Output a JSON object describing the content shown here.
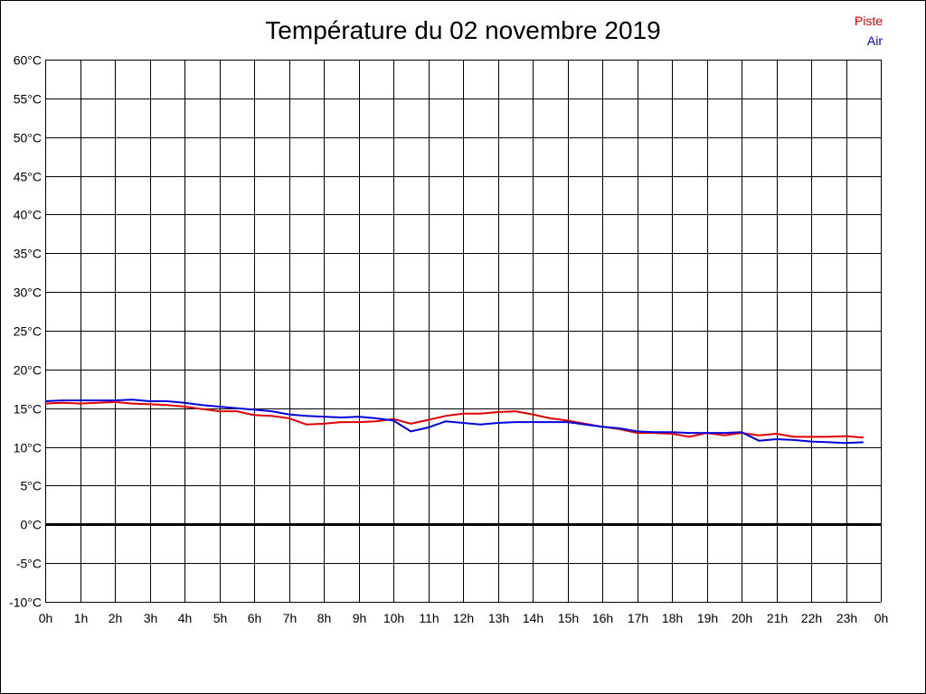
{
  "colors": {
    "piste": "#e00000",
    "air": "#0000dd",
    "grid": "#000000",
    "zero_line": "#000000",
    "background": "#ffffff"
  },
  "chart_data": {
    "type": "line",
    "title": "Température du 02 novembre 2019",
    "xlabel": "",
    "ylabel": "",
    "ylim": [
      -10,
      60
    ],
    "xlim": [
      0,
      24
    ],
    "grid": true,
    "legend_position": "top-right",
    "y_ticks": [
      60,
      55,
      50,
      45,
      40,
      35,
      30,
      25,
      20,
      15,
      10,
      5,
      0,
      -5,
      -10
    ],
    "y_tick_labels": [
      "60°C",
      "55°C",
      "50°C",
      "45°C",
      "40°C",
      "35°C",
      "30°C",
      "25°C",
      "20°C",
      "15°C",
      "10°C",
      "5°C",
      "0°C",
      "-5°C",
      "-10°C"
    ],
    "x_tick_labels": [
      "0h",
      "1h",
      "2h",
      "3h",
      "4h",
      "5h",
      "6h",
      "7h",
      "8h",
      "9h",
      "10h",
      "11h",
      "12h",
      "13h",
      "14h",
      "15h",
      "16h",
      "17h",
      "18h",
      "19h",
      "20h",
      "21h",
      "22h",
      "23h",
      "0h"
    ],
    "series": [
      {
        "name": "Piste",
        "color": "#e00000",
        "x": [
          0,
          0.5,
          1,
          1.5,
          2,
          2.5,
          3,
          3.5,
          4,
          4.5,
          5,
          5.5,
          6,
          6.5,
          7,
          7.5,
          8,
          8.5,
          9,
          9.5,
          10,
          10.5,
          11,
          11.5,
          12,
          12.5,
          13,
          13.5,
          14,
          14.5,
          15,
          15.5,
          16,
          16.5,
          17,
          17.5,
          18,
          18.5,
          19,
          19.5,
          20,
          20.5,
          21,
          21.5,
          22,
          22.5,
          23,
          23.5
        ],
        "values": [
          15.6,
          15.7,
          15.6,
          15.7,
          15.8,
          15.6,
          15.5,
          15.4,
          15.2,
          14.9,
          14.6,
          14.6,
          14.1,
          14.0,
          13.7,
          12.9,
          13.0,
          13.2,
          13.2,
          13.3,
          13.6,
          13.0,
          13.5,
          14.0,
          14.3,
          14.3,
          14.5,
          14.6,
          14.2,
          13.7,
          13.4,
          13.0,
          12.6,
          12.3,
          11.8,
          11.8,
          11.7,
          11.3,
          11.8,
          11.5,
          11.8,
          11.5,
          11.7,
          11.3,
          11.3,
          11.3,
          11.4,
          11.2
        ]
      },
      {
        "name": "Air",
        "color": "#0000dd",
        "x": [
          0,
          0.5,
          1,
          1.5,
          2,
          2.5,
          3,
          3.5,
          4,
          4.5,
          5,
          5.5,
          6,
          6.5,
          7,
          7.5,
          8,
          8.5,
          9,
          9.5,
          10,
          10.5,
          11,
          11.5,
          12,
          12.5,
          13,
          13.5,
          14,
          14.5,
          15,
          15.5,
          16,
          16.5,
          17,
          17.5,
          18,
          18.5,
          19,
          19.5,
          20,
          20.5,
          21,
          21.5,
          22,
          22.5,
          23,
          23.5
        ],
        "values": [
          15.9,
          16.0,
          16.0,
          16.0,
          16.0,
          16.1,
          15.9,
          15.9,
          15.7,
          15.4,
          15.2,
          15.0,
          14.8,
          14.6,
          14.2,
          14.0,
          13.9,
          13.8,
          13.9,
          13.7,
          13.4,
          12.0,
          12.5,
          13.3,
          13.1,
          12.9,
          13.1,
          13.2,
          13.2,
          13.2,
          13.2,
          12.9,
          12.6,
          12.4,
          12.0,
          11.9,
          11.9,
          11.8,
          11.8,
          11.8,
          11.9,
          10.8,
          11.0,
          10.9,
          10.7,
          10.6,
          10.5,
          10.6
        ]
      }
    ]
  }
}
